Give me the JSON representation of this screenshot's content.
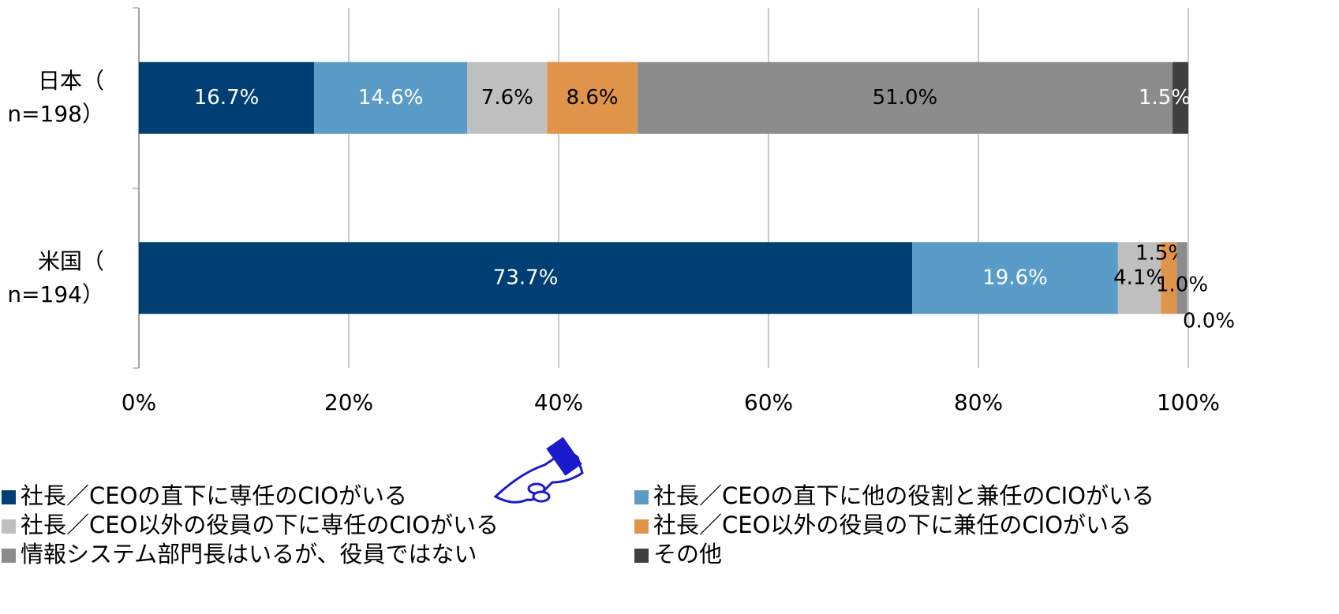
{
  "chart_data": {
    "type": "stacked_barh",
    "categories": [
      "日本（\nn=198）",
      "米国（\nn=194）"
    ],
    "series": [
      {
        "name": "社長／CEOの直下に専任のCIOがいる",
        "color": "#003f73",
        "values": [
          16.7,
          73.7
        ],
        "value_labels": [
          "16.7%",
          "73.7%"
        ]
      },
      {
        "name": "社長／CEOの直下に他の役割と兼任のCIOがいる",
        "color": "#5b9bc8",
        "values": [
          14.6,
          19.6
        ],
        "value_labels": [
          "14.6%",
          "19.6%"
        ]
      },
      {
        "name": "社長／CEO以外の役員の下に専任のCIOがいる",
        "color": "#bfbfbf",
        "values": [
          7.6,
          4.1
        ],
        "value_labels": [
          "7.6%",
          "4.1%"
        ]
      },
      {
        "name": "社長／CEO以外の役員の下に兼任のCIOがいる",
        "color": "#e0944a",
        "values": [
          8.6,
          1.5
        ],
        "value_labels": [
          "8.6%",
          "1.5%"
        ]
      },
      {
        "name": "情報システム部門長はいるが、役員ではない",
        "color": "#8c8c8c",
        "values": [
          51.0,
          1.0
        ],
        "value_labels": [
          "51.0%",
          "1.0%"
        ]
      },
      {
        "name": "その他",
        "color": "#404040",
        "values": [
          1.5,
          0.0
        ],
        "value_labels": [
          "1.5%",
          "0.0%"
        ]
      }
    ],
    "xlim": [
      0,
      100
    ],
    "xticks": [
      {
        "value": 0,
        "label": "0%"
      },
      {
        "value": 20,
        "label": "20%"
      },
      {
        "value": 40,
        "label": "40%"
      },
      {
        "value": 60,
        "label": "60%"
      },
      {
        "value": 80,
        "label": "80%"
      },
      {
        "value": 100,
        "label": "100%"
      }
    ],
    "grid": true,
    "legend": "bottom"
  }
}
